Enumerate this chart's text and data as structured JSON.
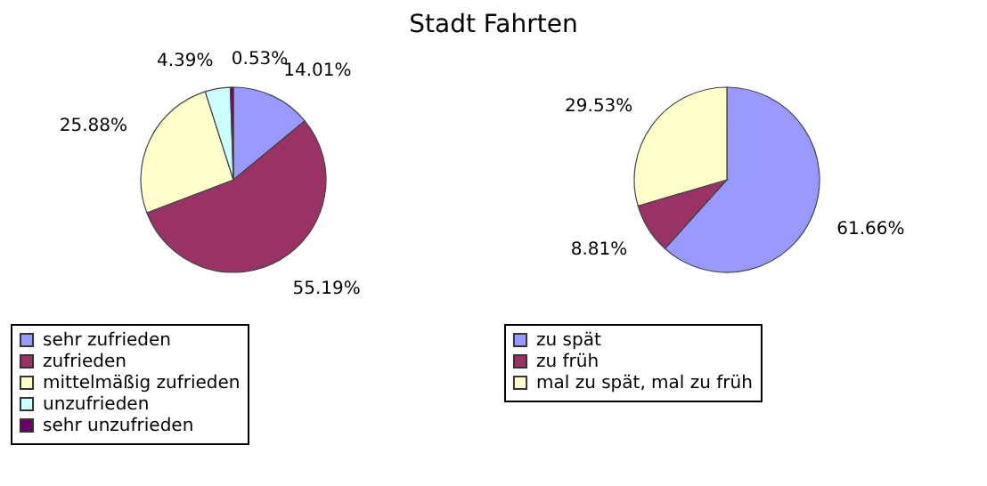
{
  "chart_data": [
    {
      "type": "pie",
      "title": "Stadt Fahrten",
      "categories": [
        "sehr zufrieden",
        "zufrieden",
        "mittelmäßig zufrieden",
        "unzufrieden",
        "sehr unzufrieden"
      ],
      "values": [
        14.01,
        55.19,
        25.88,
        4.39,
        0.53
      ],
      "colors": [
        "#9999ff",
        "#993366",
        "#ffffcc",
        "#ccffff",
        "#660066"
      ],
      "value_labels": [
        "14.01%",
        "55.19%",
        "25.88%",
        "4.39%",
        "0.53%"
      ],
      "legend": "bottom"
    },
    {
      "type": "pie",
      "categories": [
        "zu spät",
        "zu früh",
        "mal zu spät, mal zu früh"
      ],
      "values": [
        61.66,
        8.81,
        29.53
      ],
      "colors": [
        "#9999ff",
        "#993366",
        "#ffffcc"
      ],
      "value_labels": [
        "61.66%",
        "8.81%",
        "29.53%"
      ],
      "legend": "bottom"
    }
  ]
}
